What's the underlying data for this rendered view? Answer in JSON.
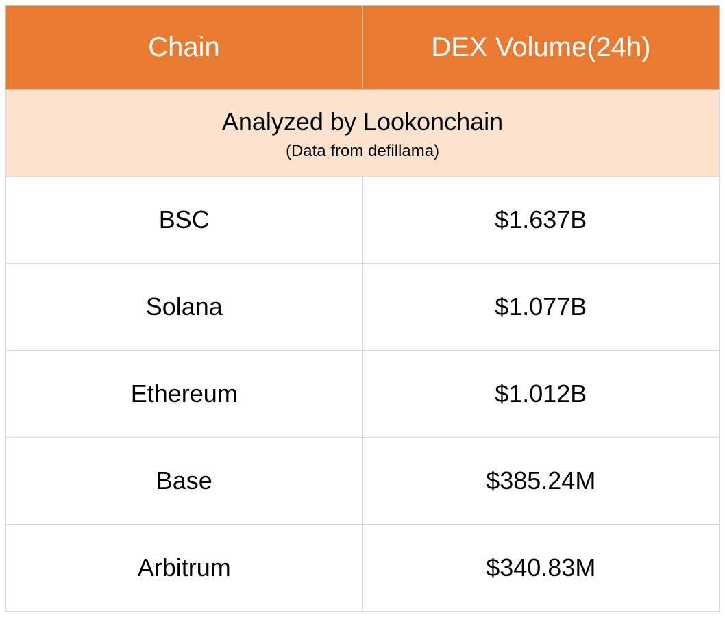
{
  "table": {
    "type": "table",
    "columns": [
      "Chain",
      "DEX Volume(24h)"
    ],
    "subtitle": {
      "main": "Analyzed by Lookonchain",
      "sub": "(Data from defillama)"
    },
    "rows": [
      {
        "chain": "BSC",
        "volume": "$1.637B"
      },
      {
        "chain": "Solana",
        "volume": "$1.077B"
      },
      {
        "chain": "Ethereum",
        "volume": "$1.012B"
      },
      {
        "chain": "Base",
        "volume": "$385.24M"
      },
      {
        "chain": "Arbitrum",
        "volume": "$340.83M"
      }
    ],
    "styling": {
      "header_bg": "#e87a32",
      "header_text_color": "#ffffff",
      "header_fontsize": 40,
      "header_border_color": "#e0b890",
      "subtitle_bg": "#fbe3cf",
      "subtitle_main_fontsize": 36,
      "subtitle_sub_fontsize": 24,
      "cell_bg": "#ffffff",
      "cell_text_color": "#000000",
      "cell_fontsize": 36,
      "cell_border_color": "#d9d9d9",
      "column_count": 2
    }
  }
}
